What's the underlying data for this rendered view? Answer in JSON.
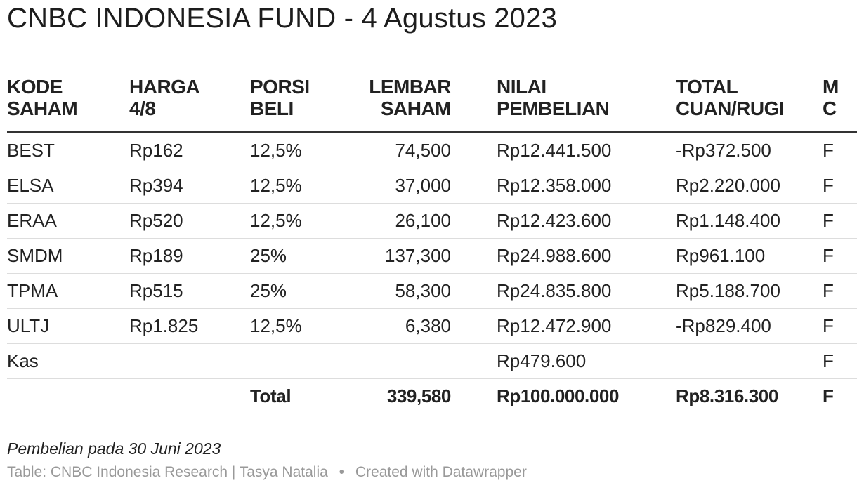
{
  "title": "CNBC INDONESIA FUND - 4 Agustus 2023",
  "table": {
    "headers": [
      "KODE\nSAHAM",
      "HARGA\n4/8",
      "PORSI\nBELI",
      "LEMBAR\nSAHAM",
      "NILAI\nPEMBELIAN",
      "TOTAL\nCUAN/RUGI",
      "M\nC"
    ],
    "rows": [
      [
        "BEST",
        "Rp162",
        "12,5%",
        "74,500",
        "Rp12.441.500",
        "-Rp372.500",
        "F"
      ],
      [
        "ELSA",
        "Rp394",
        "12,5%",
        "37,000",
        "Rp12.358.000",
        "Rp2.220.000",
        "F"
      ],
      [
        "ERAA",
        "Rp520",
        "12,5%",
        "26,100",
        "Rp12.423.600",
        "Rp1.148.400",
        "F"
      ],
      [
        "SMDM",
        "Rp189",
        "25%",
        "137,300",
        "Rp24.988.600",
        "Rp961.100",
        "F"
      ],
      [
        "TPMA",
        "Rp515",
        "25%",
        "58,300",
        "Rp24.835.800",
        "Rp5.188.700",
        "F"
      ],
      [
        "ULTJ",
        "Rp1.825",
        "12,5%",
        "6,380",
        "Rp12.472.900",
        "-Rp829.400",
        "F"
      ],
      [
        "Kas",
        "",
        "",
        "",
        "Rp479.600",
        "",
        "F"
      ]
    ],
    "total": [
      "",
      "",
      "Total",
      "339,580",
      "Rp100.000.000",
      "Rp8.316.300",
      "F"
    ]
  },
  "note": "Pembelian pada 30 Juni 2023",
  "footer": {
    "source": "Table: CNBC Indonesia Research | Tasya Natalia",
    "separator": "•",
    "credit": "Created with Datawrapper"
  }
}
